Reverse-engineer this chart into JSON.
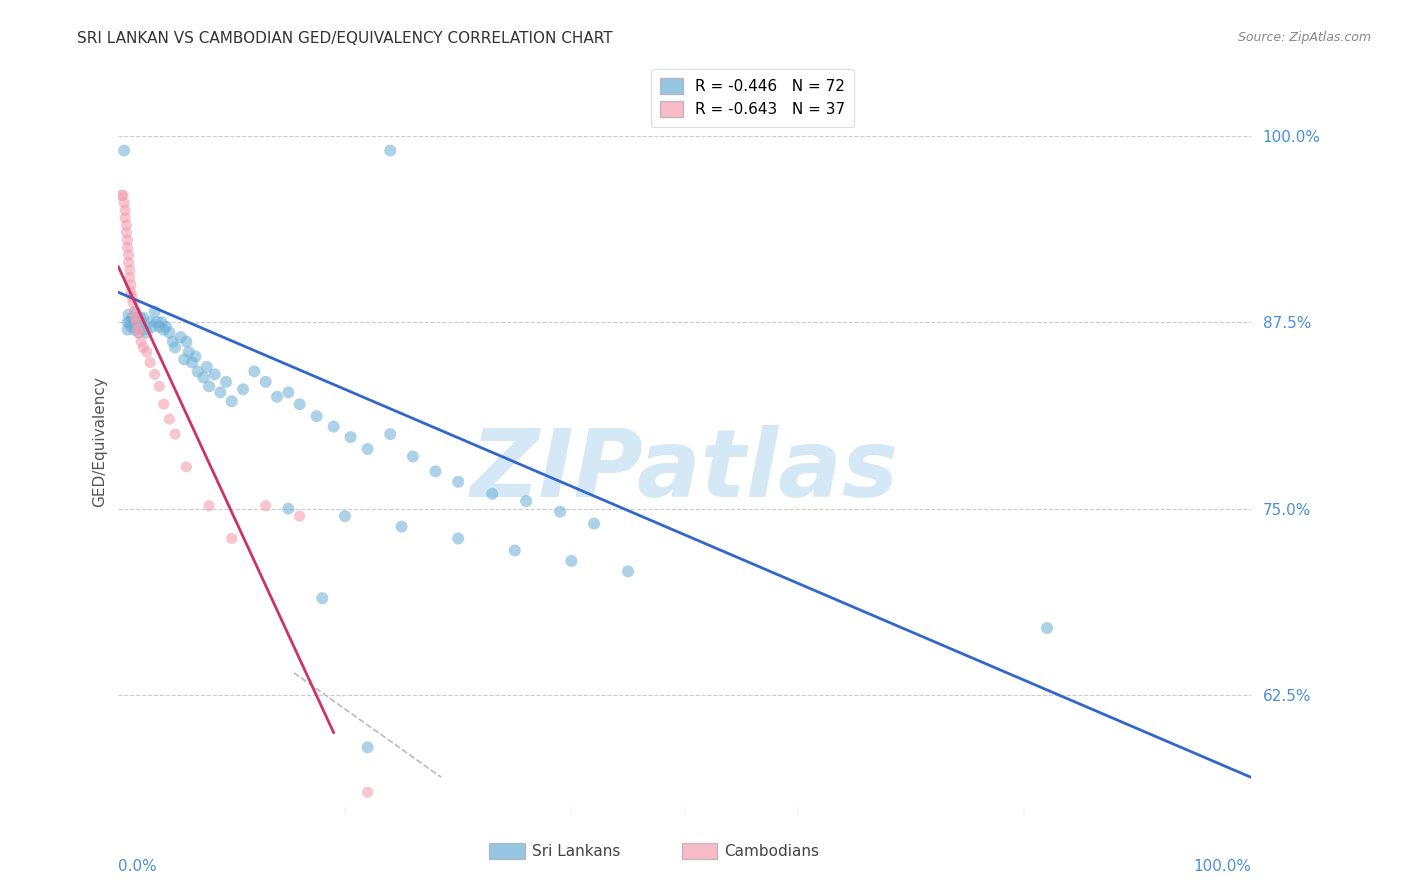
{
  "title": "SRI LANKAN VS CAMBODIAN GED/EQUIVALENCY CORRELATION CHART",
  "source": "Source: ZipAtlas.com",
  "ylabel": "GED/Equivalency",
  "ytick_labels": [
    "100.0%",
    "87.5%",
    "75.0%",
    "62.5%"
  ],
  "ytick_values": [
    1.0,
    0.875,
    0.75,
    0.625
  ],
  "xlim": [
    0.0,
    1.0
  ],
  "ylim": [
    0.545,
    1.045
  ],
  "legend_entries": [
    {
      "label": "R = -0.446   N = 72",
      "color": "#7EB3E8"
    },
    {
      "label": "R = -0.643   N = 37",
      "color": "#F4A0B0"
    }
  ],
  "sri_lankan_x": [
    0.005,
    0.24,
    0.008,
    0.008,
    0.009,
    0.01,
    0.011,
    0.012,
    0.013,
    0.014,
    0.015,
    0.016,
    0.017,
    0.018,
    0.019,
    0.02,
    0.022,
    0.022,
    0.025,
    0.028,
    0.03,
    0.032,
    0.034,
    0.036,
    0.038,
    0.04,
    0.042,
    0.045,
    0.048,
    0.05,
    0.055,
    0.058,
    0.06,
    0.062,
    0.065,
    0.068,
    0.07,
    0.075,
    0.078,
    0.08,
    0.085,
    0.09,
    0.095,
    0.1,
    0.11,
    0.12,
    0.13,
    0.14,
    0.15,
    0.16,
    0.175,
    0.19,
    0.205,
    0.22,
    0.24,
    0.26,
    0.28,
    0.3,
    0.33,
    0.36,
    0.39,
    0.42,
    0.15,
    0.2,
    0.25,
    0.3,
    0.35,
    0.4,
    0.45,
    0.82,
    0.18,
    0.22
  ],
  "sri_lankan_y": [
    0.99,
    0.99,
    0.875,
    0.87,
    0.88,
    0.875,
    0.872,
    0.878,
    0.875,
    0.87,
    0.882,
    0.878,
    0.872,
    0.868,
    0.878,
    0.875,
    0.87,
    0.878,
    0.868,
    0.875,
    0.872,
    0.882,
    0.875,
    0.872,
    0.875,
    0.87,
    0.872,
    0.868,
    0.862,
    0.858,
    0.865,
    0.85,
    0.862,
    0.855,
    0.848,
    0.852,
    0.842,
    0.838,
    0.845,
    0.832,
    0.84,
    0.828,
    0.835,
    0.822,
    0.83,
    0.842,
    0.835,
    0.825,
    0.828,
    0.82,
    0.812,
    0.805,
    0.798,
    0.79,
    0.8,
    0.785,
    0.775,
    0.768,
    0.76,
    0.755,
    0.748,
    0.74,
    0.75,
    0.745,
    0.738,
    0.73,
    0.722,
    0.715,
    0.708,
    0.67,
    0.69,
    0.59
  ],
  "cambodian_x": [
    0.003,
    0.004,
    0.005,
    0.006,
    0.006,
    0.007,
    0.007,
    0.008,
    0.008,
    0.009,
    0.009,
    0.01,
    0.01,
    0.011,
    0.011,
    0.012,
    0.013,
    0.014,
    0.015,
    0.016,
    0.017,
    0.018,
    0.02,
    0.022,
    0.025,
    0.028,
    0.032,
    0.036,
    0.04,
    0.045,
    0.05,
    0.06,
    0.08,
    0.1,
    0.13,
    0.16,
    0.22
  ],
  "cambodian_y": [
    0.96,
    0.96,
    0.955,
    0.95,
    0.945,
    0.94,
    0.935,
    0.93,
    0.925,
    0.92,
    0.915,
    0.91,
    0.905,
    0.9,
    0.895,
    0.892,
    0.888,
    0.882,
    0.878,
    0.875,
    0.87,
    0.868,
    0.862,
    0.858,
    0.855,
    0.848,
    0.84,
    0.832,
    0.82,
    0.81,
    0.8,
    0.778,
    0.752,
    0.73,
    0.752,
    0.745,
    0.56
  ],
  "blue_line_x": [
    0.0,
    1.0
  ],
  "blue_line_y": [
    0.895,
    0.57
  ],
  "pink_line_x": [
    0.0,
    0.19
  ],
  "pink_line_y": [
    0.912,
    0.6
  ],
  "dashed_line_x": [
    0.155,
    0.285
  ],
  "dashed_line_y": [
    0.64,
    0.57
  ],
  "blue_color": "#6BAED6",
  "pink_color": "#F4A0B0",
  "blue_line_color": "#3366CC",
  "pink_line_color": "#CC3366",
  "dashed_line_color": "#BBBBBB",
  "watermark_text": "ZIPatlas",
  "watermark_color": "#D5E8F5",
  "title_fontsize": 11,
  "axis_label_color": "#4A90D9",
  "background_color": "#FFFFFF",
  "scatter_size_blue": 75,
  "scatter_size_pink": 65,
  "legend_label_blue": "Sri Lankans",
  "legend_label_pink": "Cambodians"
}
